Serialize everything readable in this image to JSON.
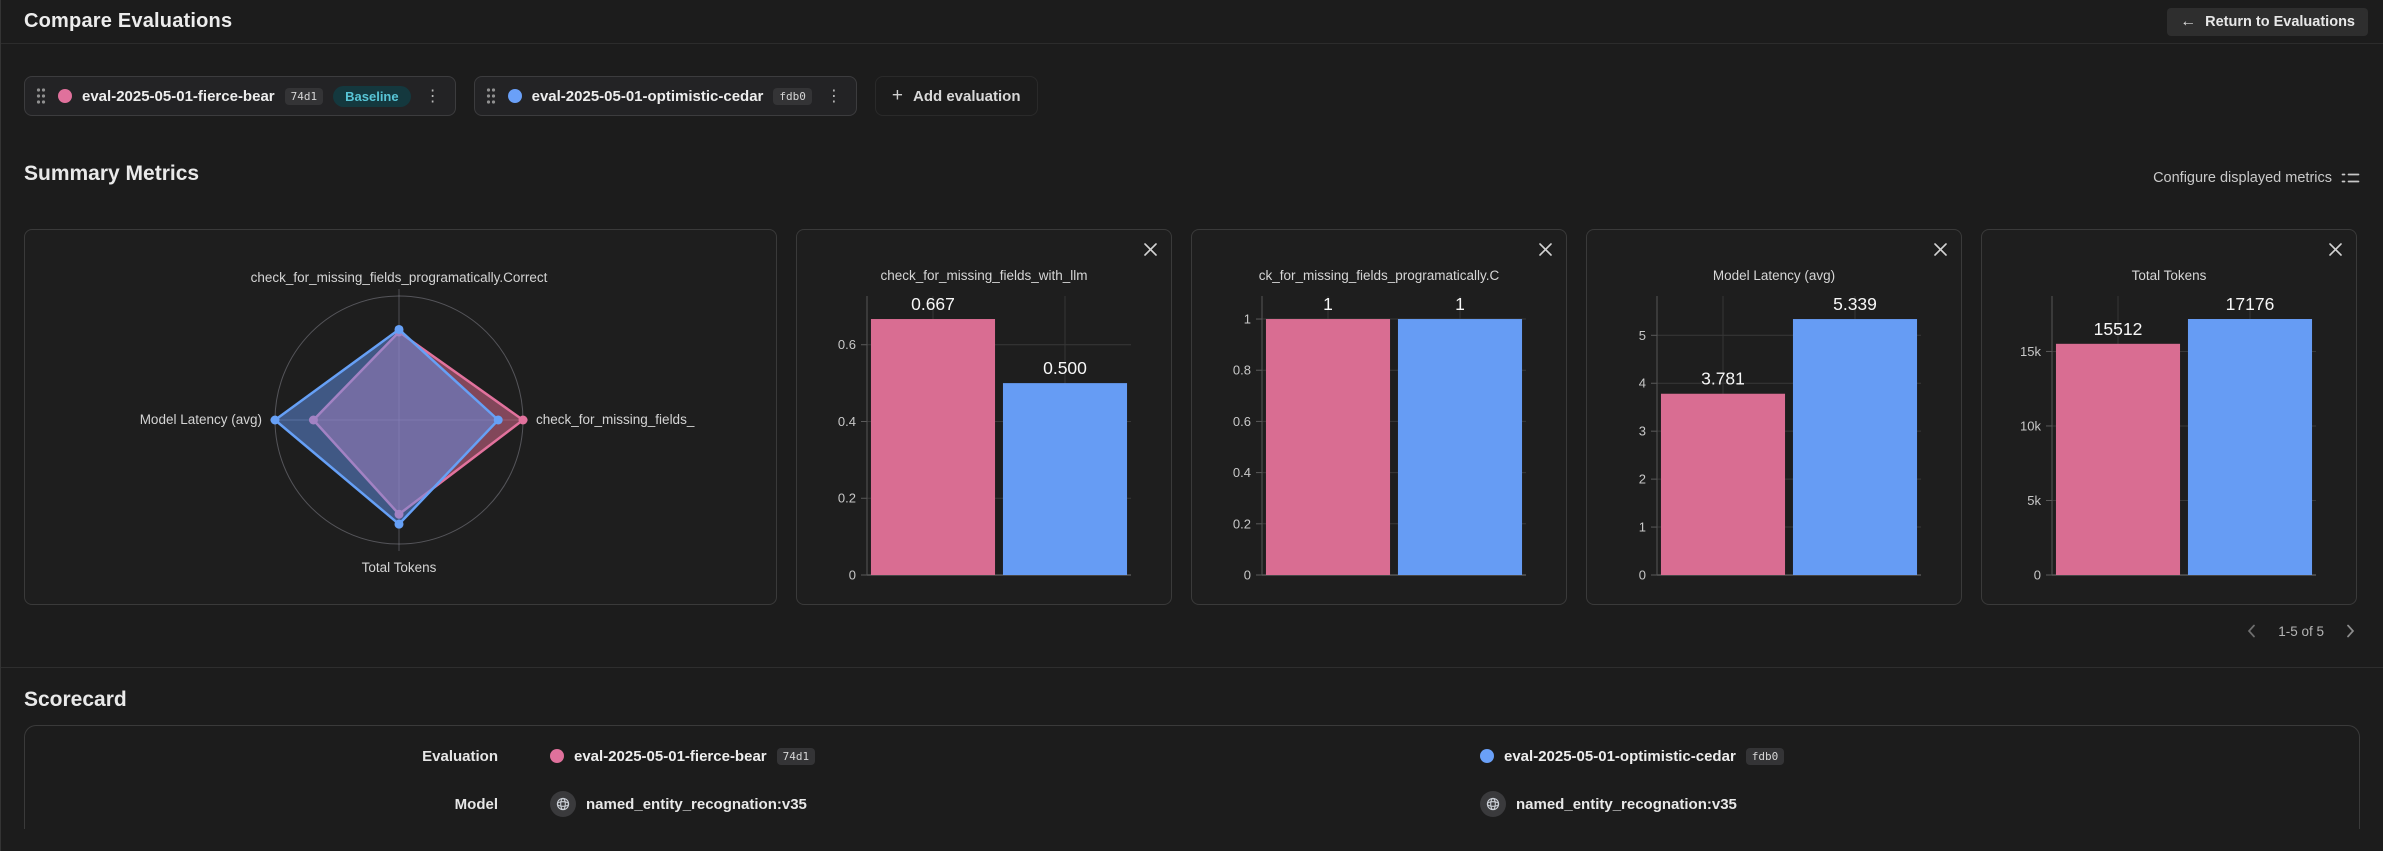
{
  "header": {
    "title": "Compare Evaluations",
    "return_button": "Return to Evaluations"
  },
  "evaluations": [
    {
      "name": "eval-2025-05-01-fierce-bear",
      "id": "74d1",
      "color": "#e0719c",
      "baseline_label": "Baseline"
    },
    {
      "name": "eval-2025-05-01-optimistic-cedar",
      "id": "fdb0",
      "color": "#6aa0f8"
    }
  ],
  "add_evaluation_label": "Add evaluation",
  "summary": {
    "title": "Summary Metrics",
    "configure_label": "Configure displayed metrics",
    "pagination": "1-5 of 5"
  },
  "scorecard": {
    "title": "Scorecard",
    "row_labels": [
      "Evaluation",
      "Model"
    ],
    "models": [
      "named_entity_recognation:v35",
      "named_entity_recognation:v35"
    ]
  },
  "series_colors": [
    "#d96d92",
    "#669cf4"
  ],
  "chart_data": [
    {
      "type": "radar",
      "axes": [
        "check_for_missing_fields_programatically.Correct",
        "check_for_missing_fields_",
        "Total Tokens",
        "Model Latency (avg)"
      ],
      "series": [
        {
          "name": "eval-2025-05-01-fierce-bear",
          "color": "#e2729d",
          "fill": "rgba(214,106,141,0.55)",
          "values_norm": [
            0.71,
            1.0,
            0.76,
            0.69
          ]
        },
        {
          "name": "eval-2025-05-01-optimistic-cedar",
          "color": "#66a0f6",
          "fill": "rgba(97,146,233,0.5)",
          "values_norm": [
            0.73,
            0.8,
            0.84,
            1.0
          ]
        }
      ],
      "grid": "circular"
    },
    {
      "type": "bar",
      "title": "check_for_missing_fields_with_llm",
      "categories": [
        "eval-2025-05-01-fierce-bear",
        "eval-2025-05-01-optimistic-cedar"
      ],
      "values": [
        0.667,
        0.5
      ],
      "value_labels": [
        "0.667",
        "0.500"
      ],
      "yticks": [
        0,
        0.2,
        0.4,
        0.6
      ],
      "ytick_labels": [
        "0",
        "0.2",
        "0.4",
        "0.6"
      ],
      "ylim": [
        0,
        0.727
      ]
    },
    {
      "type": "bar",
      "title": "ck_for_missing_fields_programatically.C",
      "categories": [
        "eval-2025-05-01-fierce-bear",
        "eval-2025-05-01-optimistic-cedar"
      ],
      "values": [
        1,
        1
      ],
      "value_labels": [
        "1",
        "1"
      ],
      "yticks": [
        0,
        0.2,
        0.4,
        0.6,
        0.8,
        1
      ],
      "ytick_labels": [
        "0",
        "0.2",
        "0.4",
        "0.6",
        "0.8",
        "1"
      ],
      "ylim": [
        0,
        1.09
      ]
    },
    {
      "type": "bar",
      "title": "Model Latency (avg)",
      "categories": [
        "eval-2025-05-01-fierce-bear",
        "eval-2025-05-01-optimistic-cedar"
      ],
      "values": [
        3.781,
        5.339
      ],
      "value_labels": [
        "3.781",
        "5.339"
      ],
      "yticks": [
        0,
        1,
        2,
        3,
        4,
        5
      ],
      "ytick_labels": [
        "0",
        "1",
        "2",
        "3",
        "4",
        "5"
      ],
      "ylim": [
        0,
        5.82
      ]
    },
    {
      "type": "bar",
      "title": "Total Tokens",
      "categories": [
        "eval-2025-05-01-fierce-bear",
        "eval-2025-05-01-optimistic-cedar"
      ],
      "values": [
        15512,
        17176
      ],
      "value_labels": [
        "15512",
        "17176"
      ],
      "yticks": [
        0,
        5000,
        10000,
        15000
      ],
      "ytick_labels": [
        "0",
        "5k",
        "10k",
        "15k"
      ],
      "ylim": [
        0,
        18720
      ]
    }
  ]
}
